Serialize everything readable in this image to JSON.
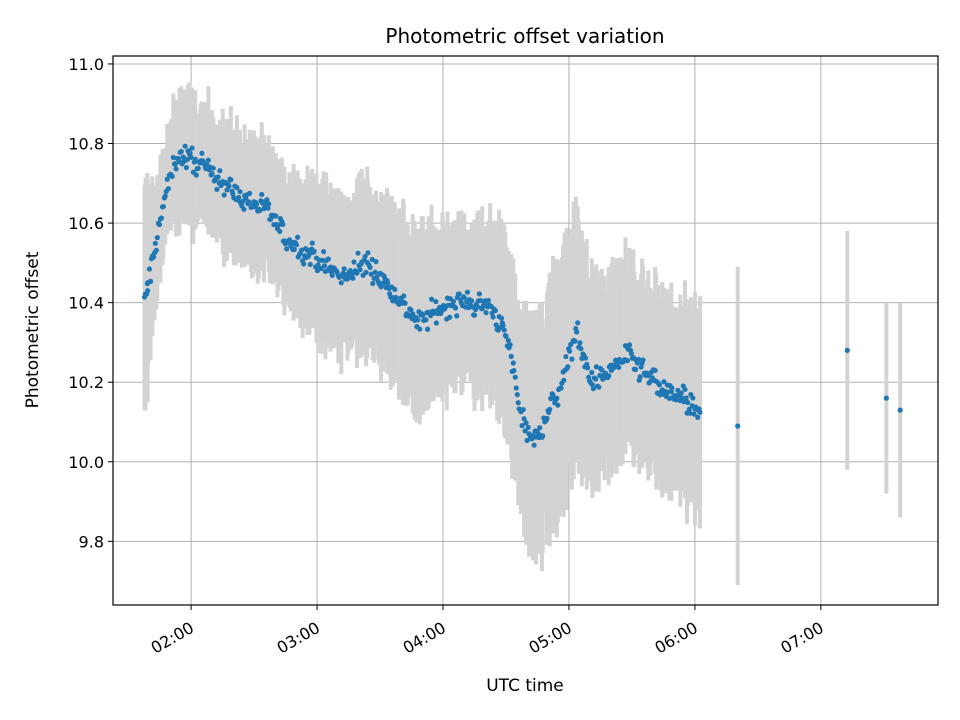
{
  "chart_data": {
    "type": "scatter",
    "title": "Photometric offset variation",
    "xlabel": "UTC time",
    "ylabel": "Photometric offset",
    "x_unit": "UTC hours",
    "xlim": [
      1.38,
      7.93
    ],
    "ylim": [
      9.64,
      11.02
    ],
    "grid": true,
    "x_ticks": [
      {
        "value": 2,
        "label": "02:00"
      },
      {
        "value": 3,
        "label": "03:00"
      },
      {
        "value": 4,
        "label": "04:00"
      },
      {
        "value": 5,
        "label": "05:00"
      },
      {
        "value": 6,
        "label": "06:00"
      },
      {
        "value": 7,
        "label": "07:00"
      }
    ],
    "y_ticks": [
      {
        "value": 9.8,
        "label": "9.8"
      },
      {
        "value": 10.0,
        "label": "10.0"
      },
      {
        "value": 10.2,
        "label": "10.2"
      },
      {
        "value": 10.4,
        "label": "10.4"
      },
      {
        "value": 10.6,
        "label": "10.6"
      },
      {
        "value": 10.8,
        "label": "10.8"
      },
      {
        "value": 11.0,
        "label": "11.0"
      }
    ],
    "marker_color": "#1f77b4",
    "errorbar_color": "#d3d3d3",
    "trend": [
      {
        "t": 1.63,
        "y": 10.4,
        "err": 0.26
      },
      {
        "t": 1.79,
        "y": 10.66,
        "err": 0.1
      },
      {
        "t": 1.88,
        "y": 10.77,
        "err": 0.15
      },
      {
        "t": 2.0,
        "y": 10.76,
        "err": 0.15
      },
      {
        "t": 2.2,
        "y": 10.72,
        "err": 0.15
      },
      {
        "t": 2.4,
        "y": 10.66,
        "err": 0.15
      },
      {
        "t": 2.6,
        "y": 10.64,
        "err": 0.15
      },
      {
        "t": 2.75,
        "y": 10.56,
        "err": 0.16
      },
      {
        "t": 2.9,
        "y": 10.53,
        "err": 0.17
      },
      {
        "t": 3.05,
        "y": 10.5,
        "err": 0.18
      },
      {
        "t": 3.2,
        "y": 10.46,
        "err": 0.19
      },
      {
        "t": 3.4,
        "y": 10.5,
        "err": 0.2
      },
      {
        "t": 3.6,
        "y": 10.43,
        "err": 0.2
      },
      {
        "t": 3.8,
        "y": 10.35,
        "err": 0.22
      },
      {
        "t": 3.95,
        "y": 10.38,
        "err": 0.2
      },
      {
        "t": 4.1,
        "y": 10.4,
        "err": 0.18
      },
      {
        "t": 4.25,
        "y": 10.4,
        "err": 0.2
      },
      {
        "t": 4.4,
        "y": 10.38,
        "err": 0.22
      },
      {
        "t": 4.52,
        "y": 10.3,
        "err": 0.22
      },
      {
        "t": 4.62,
        "y": 10.12,
        "err": 0.24
      },
      {
        "t": 4.73,
        "y": 10.05,
        "err": 0.28
      },
      {
        "t": 4.83,
        "y": 10.12,
        "err": 0.28
      },
      {
        "t": 4.95,
        "y": 10.2,
        "err": 0.28
      },
      {
        "t": 5.05,
        "y": 10.33,
        "err": 0.3
      },
      {
        "t": 5.18,
        "y": 10.2,
        "err": 0.25
      },
      {
        "t": 5.3,
        "y": 10.22,
        "err": 0.22
      },
      {
        "t": 5.45,
        "y": 10.27,
        "err": 0.22
      },
      {
        "t": 5.6,
        "y": 10.22,
        "err": 0.22
      },
      {
        "t": 5.75,
        "y": 10.18,
        "err": 0.22
      },
      {
        "t": 5.9,
        "y": 10.16,
        "err": 0.22
      },
      {
        "t": 6.04,
        "y": 10.11,
        "err": 0.24
      }
    ],
    "scatter_amplitude": 0.03,
    "n_dense_points": 560,
    "isolated_points": [
      {
        "t": 1.655,
        "y": 10.43,
        "err": 0.28
      },
      {
        "t": 6.34,
        "y": 10.09,
        "err": 0.4
      },
      {
        "t": 7.21,
        "y": 10.28,
        "err": 0.3
      },
      {
        "t": 7.52,
        "y": 10.16,
        "err": 0.24
      },
      {
        "t": 7.63,
        "y": 10.13,
        "err": 0.27
      }
    ]
  }
}
